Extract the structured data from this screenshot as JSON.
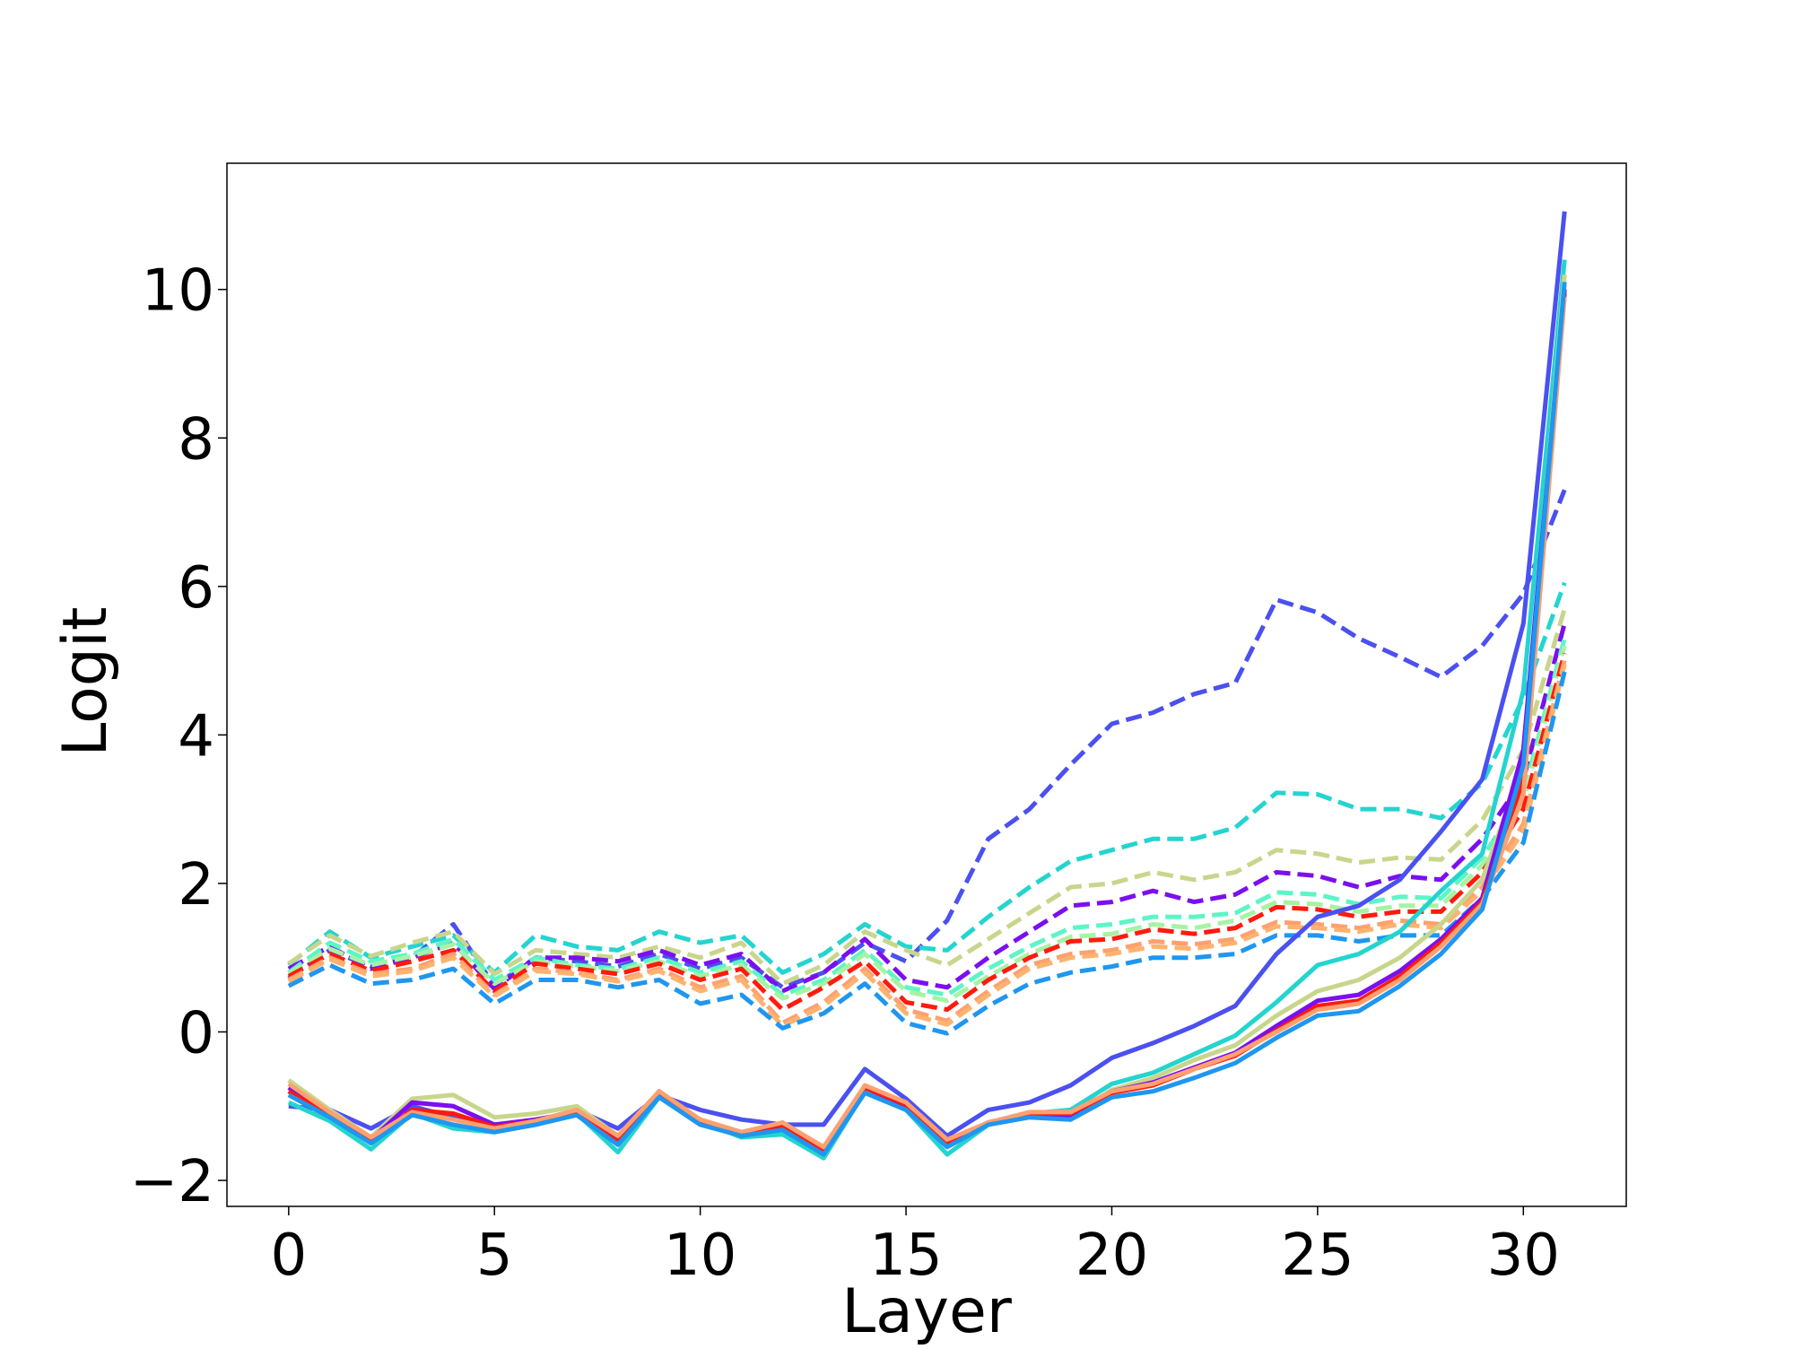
{
  "chart_data": {
    "type": "line",
    "title": "",
    "xlabel": "Layer",
    "ylabel": "Logit",
    "xlim": [
      -1.5,
      32.5
    ],
    "ylim": [
      -2.35,
      11.7
    ],
    "xticks": [
      0,
      5,
      10,
      15,
      20,
      25,
      30
    ],
    "yticks": [
      -2,
      0,
      2,
      4,
      6,
      8,
      10
    ],
    "xtick_labels": [
      "0",
      "5",
      "10",
      "15",
      "20",
      "25",
      "30"
    ],
    "ytick_labels": [
      "−2",
      "0",
      "2",
      "4",
      "6",
      "8",
      "10"
    ],
    "grid": false,
    "legend": "none",
    "x": [
      0,
      1,
      2,
      3,
      4,
      5,
      6,
      7,
      8,
      9,
      10,
      11,
      12,
      13,
      14,
      15,
      16,
      17,
      18,
      19,
      20,
      21,
      22,
      23,
      24,
      25,
      26,
      27,
      28,
      29,
      30,
      31
    ],
    "series": [
      {
        "style": "dashed",
        "color": "#4b50f0",
        "values": [
          0.72,
          1.1,
          0.88,
          1.0,
          1.45,
          0.62,
          1.0,
          0.95,
          0.88,
          1.05,
          0.85,
          1.0,
          0.6,
          0.8,
          1.2,
          0.95,
          1.5,
          2.6,
          3.0,
          3.6,
          4.15,
          4.3,
          4.55,
          4.7,
          5.82,
          5.65,
          5.3,
          5.05,
          4.78,
          5.2,
          5.9,
          7.3
        ]
      },
      {
        "style": "dashed",
        "color": "#24d4cf",
        "values": [
          0.9,
          1.35,
          1.0,
          1.15,
          1.3,
          0.8,
          1.3,
          1.15,
          1.1,
          1.35,
          1.2,
          1.3,
          0.8,
          1.05,
          1.45,
          1.15,
          1.1,
          1.55,
          1.95,
          2.3,
          2.45,
          2.6,
          2.6,
          2.75,
          3.22,
          3.2,
          3.0,
          3.0,
          2.88,
          3.35,
          4.5,
          6.05
        ]
      },
      {
        "style": "dashed",
        "color": "#c8d68c",
        "values": [
          0.92,
          1.3,
          1.02,
          1.2,
          1.35,
          0.78,
          1.1,
          1.05,
          1.0,
          1.15,
          1.0,
          1.2,
          0.65,
          0.9,
          1.35,
          1.1,
          0.9,
          1.25,
          1.6,
          1.95,
          2.0,
          2.15,
          2.05,
          2.15,
          2.45,
          2.4,
          2.28,
          2.35,
          2.32,
          2.85,
          3.8,
          5.7
        ]
      },
      {
        "style": "dashed",
        "color": "#7b0fef",
        "values": [
          0.85,
          1.15,
          0.85,
          1.0,
          1.2,
          0.58,
          1.0,
          1.0,
          0.95,
          1.1,
          0.9,
          1.05,
          0.55,
          0.8,
          1.25,
          0.7,
          0.6,
          1.0,
          1.35,
          1.7,
          1.75,
          1.9,
          1.75,
          1.85,
          2.15,
          2.1,
          1.95,
          2.1,
          2.05,
          2.6,
          3.4,
          5.5
        ]
      },
      {
        "style": "dashed",
        "color": "#5ef5c6",
        "values": [
          0.8,
          1.2,
          0.95,
          1.05,
          1.25,
          0.7,
          1.0,
          0.9,
          0.85,
          1.0,
          0.8,
          0.95,
          0.5,
          0.7,
          1.1,
          0.6,
          0.5,
          0.85,
          1.15,
          1.4,
          1.45,
          1.55,
          1.55,
          1.6,
          1.88,
          1.85,
          1.72,
          1.82,
          1.8,
          2.35,
          3.2,
          5.3
        ]
      },
      {
        "style": "dashed",
        "color": "#a6f3a4",
        "values": [
          0.78,
          1.12,
          0.9,
          1.02,
          1.18,
          0.65,
          0.95,
          0.88,
          0.82,
          0.95,
          0.75,
          0.9,
          0.45,
          0.65,
          1.05,
          0.55,
          0.42,
          0.75,
          1.05,
          1.28,
          1.32,
          1.45,
          1.4,
          1.5,
          1.75,
          1.72,
          1.62,
          1.7,
          1.7,
          2.25,
          3.1,
          5.2
        ]
      },
      {
        "style": "dashed",
        "color": "#ff1a0d",
        "values": [
          0.75,
          1.05,
          0.82,
          0.95,
          1.1,
          0.55,
          0.92,
          0.85,
          0.78,
          0.92,
          0.7,
          0.85,
          0.3,
          0.6,
          0.95,
          0.4,
          0.3,
          0.7,
          1.0,
          1.22,
          1.25,
          1.38,
          1.32,
          1.4,
          1.68,
          1.65,
          1.55,
          1.62,
          1.62,
          2.15,
          3.0,
          5.1
        ]
      },
      {
        "style": "dashed",
        "color": "#ffa070",
        "values": [
          0.7,
          1.0,
          0.78,
          0.85,
          1.05,
          0.5,
          0.85,
          0.8,
          0.7,
          0.85,
          0.6,
          0.75,
          0.12,
          0.4,
          0.85,
          0.3,
          0.15,
          0.55,
          0.9,
          1.05,
          1.1,
          1.22,
          1.18,
          1.25,
          1.48,
          1.45,
          1.4,
          1.5,
          1.45,
          1.95,
          2.8,
          5.0
        ]
      },
      {
        "style": "dashed",
        "color": "#fcb36f",
        "values": [
          0.68,
          0.98,
          0.75,
          0.82,
          1.0,
          0.48,
          0.82,
          0.78,
          0.68,
          0.82,
          0.55,
          0.7,
          0.08,
          0.35,
          0.8,
          0.25,
          0.1,
          0.5,
          0.85,
          1.0,
          1.05,
          1.15,
          1.12,
          1.2,
          1.42,
          1.4,
          1.35,
          1.45,
          1.4,
          1.9,
          2.7,
          4.95
        ]
      },
      {
        "style": "dashed",
        "color": "#1f96f0",
        "values": [
          0.62,
          0.9,
          0.65,
          0.7,
          0.85,
          0.38,
          0.7,
          0.7,
          0.6,
          0.7,
          0.38,
          0.5,
          0.05,
          0.25,
          0.65,
          0.12,
          -0.02,
          0.35,
          0.65,
          0.8,
          0.88,
          1.0,
          1.0,
          1.05,
          1.3,
          1.3,
          1.22,
          1.3,
          1.3,
          1.8,
          2.55,
          4.85
        ]
      },
      {
        "style": "solid",
        "color": "#4b50f0",
        "values": [
          -1.0,
          -1.05,
          -1.3,
          -1.0,
          -1.15,
          -1.25,
          -1.2,
          -1.05,
          -1.3,
          -0.85,
          -1.05,
          -1.18,
          -1.25,
          -1.25,
          -0.5,
          -0.9,
          -1.4,
          -1.05,
          -0.95,
          -0.72,
          -0.35,
          -0.15,
          0.08,
          0.35,
          1.05,
          1.55,
          1.7,
          2.05,
          2.7,
          3.4,
          5.5,
          11.05
        ]
      },
      {
        "style": "solid",
        "color": "#24d4cf",
        "values": [
          -0.95,
          -1.2,
          -1.58,
          -1.1,
          -1.3,
          -1.35,
          -1.25,
          -1.1,
          -1.62,
          -0.88,
          -1.2,
          -1.42,
          -1.38,
          -1.7,
          -0.8,
          -1.05,
          -1.65,
          -1.25,
          -1.1,
          -1.05,
          -0.7,
          -0.55,
          -0.3,
          -0.05,
          0.4,
          0.9,
          1.05,
          1.35,
          1.9,
          2.4,
          4.6,
          10.4
        ]
      },
      {
        "style": "solid",
        "color": "#c8d68c",
        "values": [
          -0.65,
          -1.05,
          -1.42,
          -0.9,
          -0.85,
          -1.15,
          -1.1,
          -1.0,
          -1.4,
          -0.85,
          -1.18,
          -1.35,
          -1.25,
          -1.62,
          -0.75,
          -1.02,
          -1.52,
          -1.22,
          -1.12,
          -1.15,
          -0.78,
          -0.62,
          -0.38,
          -0.18,
          0.22,
          0.55,
          0.7,
          1.0,
          1.45,
          2.05,
          3.6,
          10.2
        ]
      },
      {
        "style": "solid",
        "color": "#7b0fef",
        "values": [
          -0.75,
          -1.1,
          -1.45,
          -0.95,
          -1.0,
          -1.25,
          -1.18,
          -1.08,
          -1.45,
          -0.8,
          -1.2,
          -1.38,
          -1.3,
          -1.6,
          -0.75,
          -1.0,
          -1.5,
          -1.22,
          -1.1,
          -1.12,
          -0.8,
          -0.68,
          -0.48,
          -0.28,
          0.08,
          0.42,
          0.5,
          0.82,
          1.25,
          1.8,
          3.8,
          10.0
        ]
      },
      {
        "style": "solid",
        "color": "#ff1a0d",
        "values": [
          -0.8,
          -1.12,
          -1.48,
          -1.05,
          -1.1,
          -1.28,
          -1.2,
          -1.1,
          -1.48,
          -0.82,
          -1.22,
          -1.4,
          -1.28,
          -1.58,
          -0.75,
          -0.98,
          -1.48,
          -1.22,
          -1.1,
          -1.1,
          -0.82,
          -0.72,
          -0.5,
          -0.32,
          0.02,
          0.35,
          0.42,
          0.75,
          1.2,
          1.75,
          3.4,
          9.95
        ]
      },
      {
        "style": "solid",
        "color": "#ffa070",
        "values": [
          -0.7,
          -1.08,
          -1.42,
          -1.08,
          -1.18,
          -1.3,
          -1.2,
          -1.05,
          -1.4,
          -0.8,
          -1.18,
          -1.35,
          -1.22,
          -1.55,
          -0.72,
          -0.95,
          -1.45,
          -1.22,
          -1.08,
          -1.08,
          -0.8,
          -0.7,
          -0.5,
          -0.3,
          0.0,
          0.3,
          0.38,
          0.7,
          1.15,
          1.72,
          3.2,
          9.9
        ]
      },
      {
        "style": "solid",
        "color": "#1f96f0",
        "values": [
          -0.85,
          -1.15,
          -1.5,
          -1.12,
          -1.25,
          -1.35,
          -1.25,
          -1.12,
          -1.52,
          -0.88,
          -1.25,
          -1.4,
          -1.32,
          -1.65,
          -0.82,
          -1.05,
          -1.55,
          -1.25,
          -1.15,
          -1.18,
          -0.88,
          -0.8,
          -0.62,
          -0.42,
          -0.08,
          0.22,
          0.28,
          0.62,
          1.05,
          1.65,
          3.6,
          10.1
        ]
      }
    ]
  }
}
